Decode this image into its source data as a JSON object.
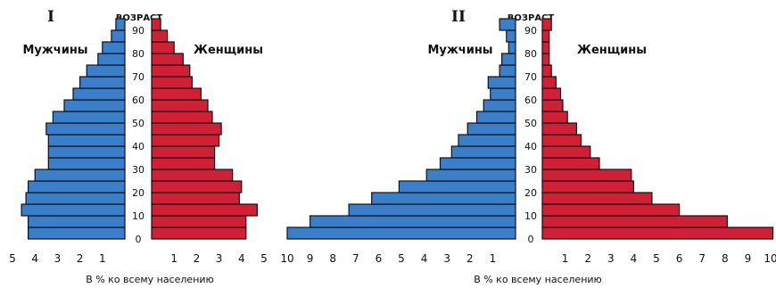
{
  "chart_data": [
    {
      "type": "bar",
      "panel_label": "I",
      "age_axis_title": "ВОЗРАСТ",
      "age_ticks": [
        "0",
        "10",
        "20",
        "30",
        "40",
        "50",
        "60",
        "70",
        "80",
        "90"
      ],
      "x_ticks_left": [
        "5",
        "4",
        "3",
        "2",
        "1"
      ],
      "x_ticks_right": [
        "1",
        "2",
        "3",
        "4",
        "5"
      ],
      "xlabel": "В % ко всему населению",
      "xlim": [
        0,
        5
      ],
      "age_groups": [
        "0-4",
        "5-9",
        "10-14",
        "15-19",
        "20-24",
        "25-29",
        "30-34",
        "35-39",
        "40-44",
        "45-49",
        "50-54",
        "55-59",
        "60-64",
        "65-69",
        "70-74",
        "75-79",
        "80-84",
        "85-89",
        "90+"
      ],
      "series": [
        {
          "name": "Мужчины",
          "side": "left",
          "values": [
            4.3,
            4.3,
            4.6,
            4.4,
            4.3,
            4.0,
            3.4,
            3.4,
            3.4,
            3.5,
            3.2,
            2.7,
            2.3,
            2.0,
            1.7,
            1.2,
            1.0,
            0.6,
            0.4
          ]
        },
        {
          "name": "Женщины",
          "side": "right",
          "values": [
            4.2,
            4.2,
            4.7,
            3.9,
            4.0,
            3.6,
            2.8,
            2.8,
            3.0,
            3.1,
            2.7,
            2.5,
            2.2,
            1.8,
            1.7,
            1.4,
            1.0,
            0.7,
            0.4
          ]
        }
      ]
    },
    {
      "type": "bar",
      "panel_label": "II",
      "age_axis_title": "ВОЗРАСТ",
      "age_ticks": [
        "0",
        "10",
        "20",
        "30",
        "40",
        "50",
        "60",
        "70",
        "80",
        "90"
      ],
      "x_ticks_left": [
        "10",
        "9",
        "8",
        "7",
        "6",
        "5",
        "4",
        "3",
        "2",
        "1"
      ],
      "x_ticks_right": [
        "1",
        "2",
        "3",
        "4",
        "5",
        "6",
        "7",
        "8",
        "9",
        "10"
      ],
      "xlabel": "В % ко всему населению",
      "xlim": [
        0,
        10
      ],
      "age_groups": [
        "0-4",
        "5-9",
        "10-14",
        "15-19",
        "20-24",
        "25-29",
        "30-34",
        "35-39",
        "40-44",
        "45-49",
        "50-54",
        "55-59",
        "60-64",
        "65-69",
        "70-74",
        "75-79",
        "80-84",
        "85-89",
        "90+"
      ],
      "series": [
        {
          "name": "Мужчины",
          "side": "left",
          "values": [
            10.0,
            9.0,
            7.3,
            6.3,
            5.1,
            3.9,
            3.3,
            2.8,
            2.5,
            2.1,
            1.7,
            1.4,
            1.1,
            1.2,
            0.7,
            0.6,
            0.3,
            0.4,
            0.7
          ]
        },
        {
          "name": "Женщины",
          "side": "right",
          "values": [
            10.1,
            8.1,
            6.0,
            4.8,
            4.0,
            3.9,
            2.5,
            2.1,
            1.7,
            1.5,
            1.1,
            0.9,
            0.8,
            0.6,
            0.4,
            0.3,
            0.3,
            0.3,
            0.4
          ]
        }
      ]
    }
  ],
  "colors": {
    "male": "#3b7ec9",
    "female": "#d11f36",
    "outline": "#111111"
  }
}
